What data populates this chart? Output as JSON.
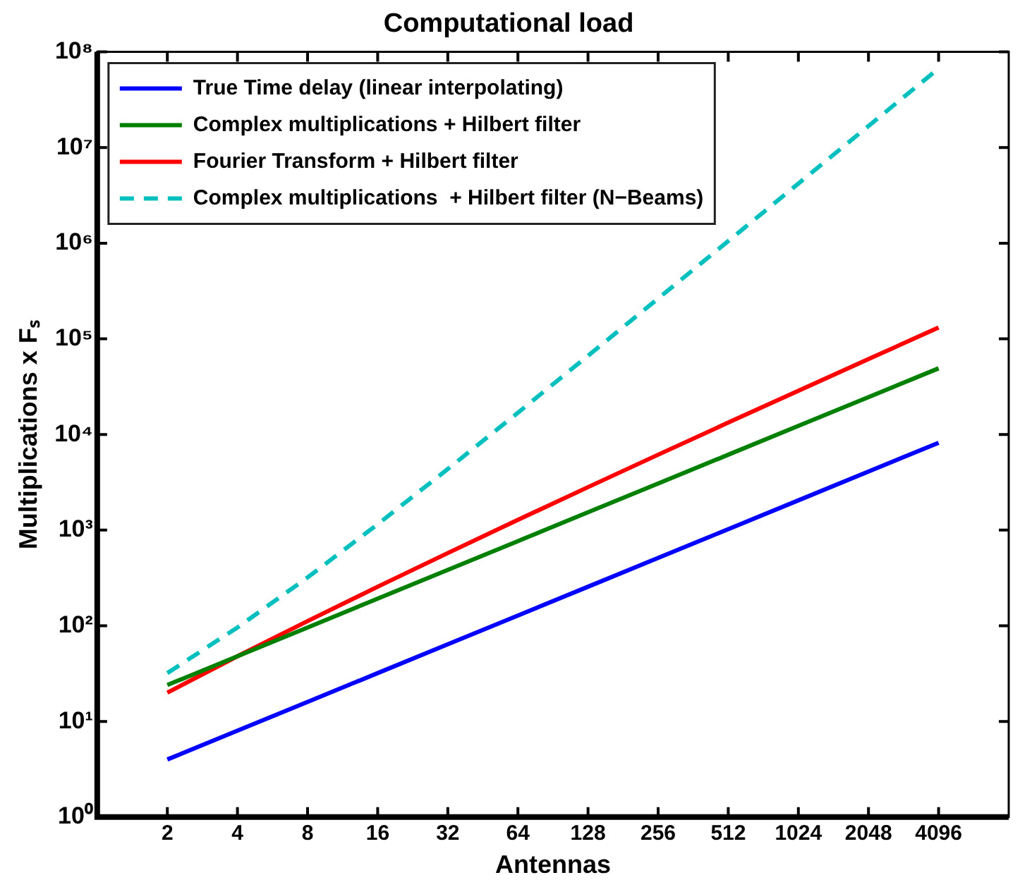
{
  "chart_data": {
    "type": "line",
    "title": "Computational load",
    "xlabel": "Antennas",
    "ylabel": "Multiplications x Fₛ",
    "x": [
      2,
      4,
      8,
      16,
      32,
      64,
      128,
      256,
      512,
      1024,
      2048,
      4096
    ],
    "series": [
      {
        "name": "True Time delay (linear interpolating)",
        "color": "#0000ff",
        "values": [
          4,
          8,
          16,
          32,
          64,
          128,
          256,
          512,
          1024,
          2048,
          4096,
          8192
        ]
      },
      {
        "name": "Complex multiplications + Hilbert filter",
        "color": "#008000",
        "values": [
          24,
          48,
          96,
          192,
          384,
          768,
          1536,
          3072,
          6144,
          12288,
          24576,
          49152
        ]
      },
      {
        "name": "Fourier Transform + Hilbert filter",
        "color": "#ff0000",
        "values": [
          20,
          48,
          112,
          256,
          576,
          1280,
          2816,
          6144,
          13312,
          28672,
          61440,
          131072
        ]
      },
      {
        "name": "Complex multiplications  + Hilbert filter (N−Beams)",
        "color": "#00bfbf",
        "line_style": "dashed",
        "values": [
          32,
          96,
          320,
          1152,
          4352,
          16896,
          66560,
          264192,
          1052672,
          4202496,
          16793600,
          67141632
        ]
      }
    ],
    "log": "xy",
    "xlim": [
      1,
      8192
    ],
    "xticks": [
      2,
      4,
      8,
      16,
      32,
      64,
      128,
      256,
      512,
      1024,
      2048,
      4096
    ],
    "ylim": [
      1,
      100000000
    ],
    "yticks": [
      {
        "value": 1,
        "label": "10⁰"
      },
      {
        "value": 10,
        "label": "10¹"
      },
      {
        "value": 100,
        "label": "10²"
      },
      {
        "value": 1000,
        "label": "10³"
      },
      {
        "value": 10000,
        "label": "10⁴"
      },
      {
        "value": 100000,
        "label": "10⁵"
      },
      {
        "value": 1000000,
        "label": "10⁶"
      },
      {
        "value": 10000000,
        "label": "10⁷"
      },
      {
        "value": 100000000,
        "label": "10⁸"
      }
    ],
    "grid": false,
    "legend": "top left",
    "marker": "none",
    "line_style": "solid"
  }
}
